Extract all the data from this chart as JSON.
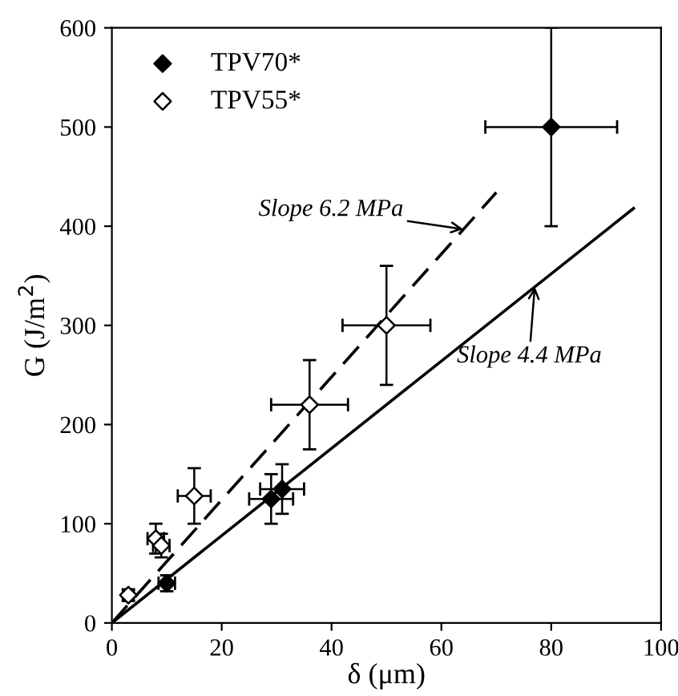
{
  "chart_data": {
    "type": "scatter",
    "xlabel": "δ (μm)",
    "ylabel": "G (J/m$^{2}$)",
    "xlim": [
      0,
      100
    ],
    "ylim": [
      0,
      600
    ],
    "xticks": [
      0,
      20,
      40,
      60,
      80,
      100
    ],
    "yticks": [
      0,
      100,
      200,
      300,
      400,
      500,
      600
    ],
    "grid": false,
    "legend": "top left",
    "series": [
      {
        "name": "TPV70*",
        "color": "#000000",
        "marker": "diamond",
        "x": [
          10,
          29,
          31,
          80
        ],
        "values": [
          40,
          125,
          135,
          500
        ],
        "errors": [
          8,
          25,
          25,
          100
        ],
        "xerrors": [
          1.5,
          4,
          4,
          12
        ]
      },
      {
        "name": "TPV55*",
        "color": "#ffffff",
        "marker": "diamond",
        "x": [
          3,
          8,
          9,
          15,
          36,
          50
        ],
        "values": [
          28,
          85,
          78,
          128,
          220,
          300
        ],
        "errors": [
          6,
          15,
          12,
          28,
          45,
          60
        ],
        "xerrors": [
          1,
          1.5,
          1.5,
          3,
          7,
          8
        ]
      },
      {
        "type": "line",
        "color": "#000000",
        "line_style": "dashed",
        "x": [
          0,
          70
        ],
        "values": [
          0,
          434
        ]
      },
      {
        "type": "line",
        "color": "#000000",
        "line_style": "solid",
        "x": [
          0,
          95
        ],
        "values": [
          0,
          418
        ]
      }
    ],
    "annotations": [
      {
        "text": "Slope 6.2 MPa",
        "x": 64,
        "y": 397
      },
      {
        "text": "Slope 4.4 MPa",
        "x": 77,
        "y": 339
      }
    ]
  }
}
